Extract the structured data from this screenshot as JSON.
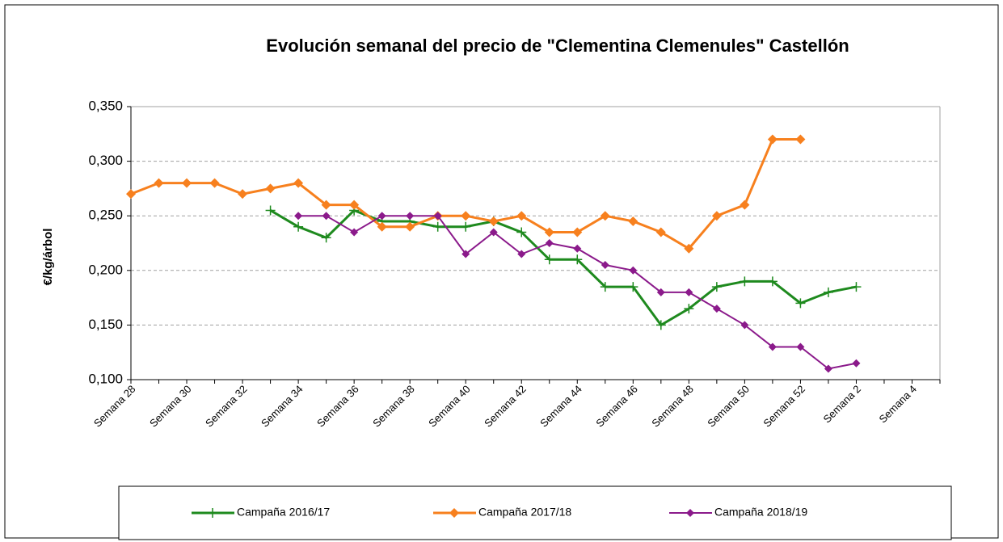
{
  "chart_data": {
    "type": "line",
    "title": "Evolución semanal del precio de \"Clementina Clemenules\" Castellón",
    "ylabel": "€/kg/árbol",
    "categories": [
      "Semana 28",
      null,
      "Semana 30",
      null,
      "Semana 32",
      null,
      "Semana 34",
      null,
      "Semana 36",
      null,
      "Semana 38",
      null,
      "Semana 40",
      null,
      "Semana 42",
      null,
      "Semana 44",
      null,
      "Semana 46",
      null,
      "Semana 48",
      null,
      "Semana 50",
      null,
      "Semana 52",
      null,
      "Semana 2",
      null,
      "Semana 4",
      null
    ],
    "ylim": [
      0.1,
      0.35
    ],
    "yticks": [
      {
        "value": 0.1,
        "label": "0,100"
      },
      {
        "value": 0.15,
        "label": "0,150"
      },
      {
        "value": 0.2,
        "label": "0,200"
      },
      {
        "value": 0.25,
        "label": "0,250"
      },
      {
        "value": 0.3,
        "label": "0,300"
      },
      {
        "value": 0.35,
        "label": "0,350"
      }
    ],
    "grid": true,
    "legend": "bottom",
    "series": [
      {
        "name": "Campaña 2016/17",
        "color": "#1e8a1e",
        "marker": "plus",
        "values": [
          null,
          null,
          null,
          null,
          null,
          0.255,
          0.24,
          0.23,
          0.255,
          0.245,
          0.245,
          0.24,
          0.24,
          0.245,
          0.235,
          0.21,
          0.21,
          0.185,
          0.185,
          0.15,
          0.165,
          0.185,
          0.19,
          0.19,
          0.17,
          0.18,
          0.185,
          null,
          null,
          null
        ]
      },
      {
        "name": "Campaña 2017/18",
        "color": "#f7801e",
        "marker": "diamond",
        "values": [
          0.27,
          0.28,
          0.28,
          0.28,
          0.27,
          0.275,
          0.28,
          0.26,
          0.26,
          0.24,
          0.24,
          0.25,
          0.25,
          0.245,
          0.25,
          0.235,
          0.235,
          0.25,
          0.245,
          0.235,
          0.22,
          0.25,
          0.26,
          0.32,
          0.32,
          null,
          null,
          null,
          null,
          null
        ]
      },
      {
        "name": "Campaña 2018/19",
        "color": "#8b1a8b",
        "marker": "diamond-small",
        "values": [
          null,
          null,
          null,
          null,
          null,
          null,
          0.25,
          0.25,
          0.235,
          0.25,
          0.25,
          0.25,
          0.215,
          0.235,
          0.215,
          0.225,
          0.22,
          0.205,
          0.2,
          0.18,
          0.18,
          0.165,
          0.15,
          0.13,
          0.13,
          0.11,
          0.115,
          null,
          null,
          null
        ]
      }
    ]
  }
}
